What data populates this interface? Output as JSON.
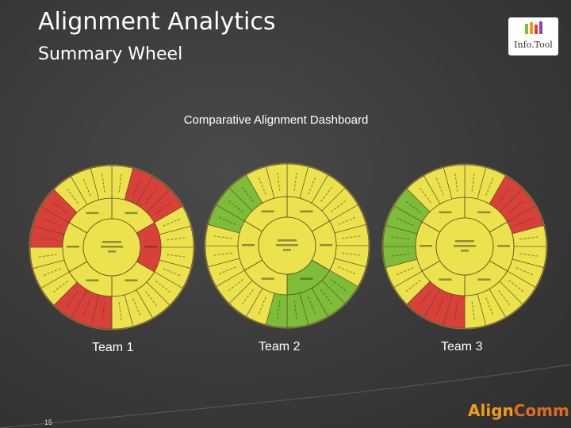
{
  "slide": {
    "title": "Alignment Analytics",
    "subtitle": "Summary Wheel",
    "page_number": "15"
  },
  "logo": {
    "text": "Info.Tool"
  },
  "brand": {
    "part1": "Align",
    "part2": "Comm"
  },
  "dashboard": {
    "title": "Comparative Alignment Dashboard",
    "colors": {
      "yellow": "#ece24d",
      "red": "#d9403a",
      "green": "#7ebd3a",
      "line": "#5a4a2a",
      "frame": "#8a7a3a"
    },
    "teams": [
      {
        "label": "Team 1",
        "red_outer_ranges": [
          [
            1,
            3
          ],
          [
            12,
            14
          ],
          [
            18,
            20
          ]
        ],
        "green_outer_ranges": [],
        "red_middle": [
          1
        ],
        "green_middle": []
      },
      {
        "label": "Team 2",
        "red_outer_ranges": [],
        "green_outer_ranges": [
          [
            19,
            21
          ],
          [
            8,
            12
          ]
        ],
        "red_middle": [],
        "green_middle": [
          2
        ]
      },
      {
        "label": "Team 3",
        "red_outer_ranges": [
          [
            2,
            4
          ],
          [
            12,
            14
          ]
        ],
        "green_outer_ranges": [
          [
            17,
            20
          ]
        ],
        "red_middle": [],
        "green_middle": []
      }
    ]
  }
}
